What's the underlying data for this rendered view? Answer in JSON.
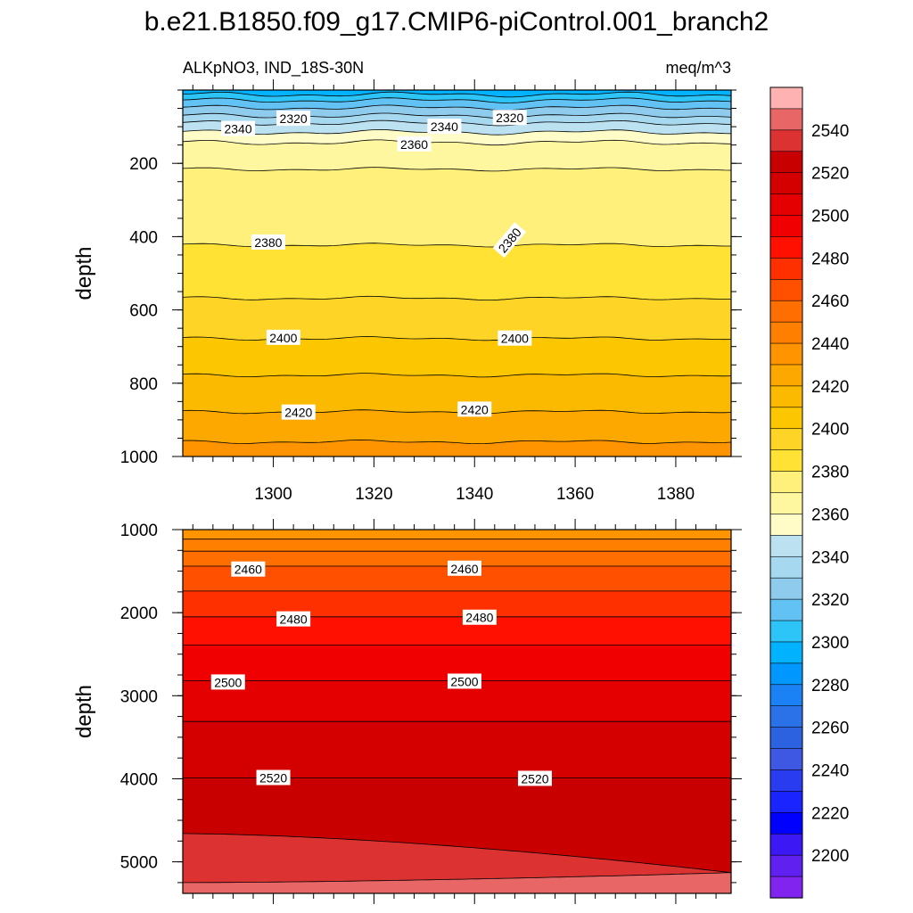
{
  "title": "b.e21.B1850.f09_g17.CMIP6-piControl.001_branch2",
  "chart_data": [
    {
      "type": "contour",
      "left_label": "ALKpNO3, IND_18S-30N",
      "right_label": "meq/m^3",
      "xlabel": "",
      "ylabel": "depth",
      "xlim": [
        1282,
        1391
      ],
      "ylim": [
        0,
        1000
      ],
      "y_inverted": true,
      "x_ticks": [
        "1300",
        "1320",
        "1340",
        "1360",
        "1380"
      ],
      "x_tick_values": [
        1300,
        1320,
        1340,
        1360,
        1380
      ],
      "y_ticks": [
        "200",
        "400",
        "600",
        "800",
        "1000"
      ],
      "y_tick_values": [
        200,
        400,
        600,
        800,
        1000
      ],
      "contours": [
        {
          "level": 2300,
          "depth": 12
        },
        {
          "level": 2310,
          "depth": 28
        },
        {
          "level": 2320,
          "depth": 48
        },
        {
          "level": 2330,
          "depth": 70
        },
        {
          "level": 2340,
          "depth": 90
        },
        {
          "level": 2350,
          "depth": 115
        },
        {
          "level": 2360,
          "depth": 143
        },
        {
          "level": 2370,
          "depth": 216
        },
        {
          "level": 2380,
          "depth": 423
        },
        {
          "level": 2390,
          "depth": 568
        },
        {
          "level": 2400,
          "depth": 678
        },
        {
          "level": 2410,
          "depth": 778
        },
        {
          "level": 2420,
          "depth": 878
        },
        {
          "level": 2430,
          "depth": 960
        }
      ],
      "contour_labels": [
        {
          "text": "2340",
          "x": 1293,
          "depth": 106
        },
        {
          "text": "2320",
          "x": 1304,
          "depth": 78
        },
        {
          "text": "2340",
          "x": 1334,
          "depth": 100
        },
        {
          "text": "2320",
          "x": 1347,
          "depth": 76
        },
        {
          "text": "2360",
          "x": 1328,
          "depth": 148
        },
        {
          "text": "2380",
          "x": 1299,
          "depth": 416
        },
        {
          "text": "2380",
          "x": 1347,
          "depth": 410
        },
        {
          "text": "2400",
          "x": 1302,
          "depth": 676
        },
        {
          "text": "2400",
          "x": 1348,
          "depth": 678
        },
        {
          "text": "2420",
          "x": 1305,
          "depth": 880
        },
        {
          "text": "2420",
          "x": 1340,
          "depth": 872
        }
      ]
    },
    {
      "type": "contour",
      "xlabel": "",
      "ylabel": "depth",
      "xlim": [
        1282,
        1391
      ],
      "ylim": [
        1000,
        5380
      ],
      "y_inverted": true,
      "y_ticks": [
        "1000",
        "2000",
        "3000",
        "4000",
        "5000"
      ],
      "y_tick_values": [
        1000,
        2000,
        3000,
        4000,
        5000
      ],
      "contours": [
        {
          "level": 2440,
          "depth": 1115
        },
        {
          "level": 2450,
          "depth": 1260
        },
        {
          "level": 2460,
          "depth": 1440
        },
        {
          "level": 2470,
          "depth": 1740
        },
        {
          "level": 2480,
          "depth": 2050
        },
        {
          "level": 2490,
          "depth": 2390
        },
        {
          "level": 2500,
          "depth": 2820
        },
        {
          "level": 2510,
          "depth": 3310
        },
        {
          "level": 2520,
          "depth": 3990
        },
        {
          "level": 2530,
          "depth_left": 4660,
          "depth_right": 5130
        },
        {
          "level": 2540,
          "depth_left": 5250,
          "depth_right": 5130
        }
      ],
      "contour_labels": [
        {
          "text": "2460",
          "x": 1295,
          "depth": 1480
        },
        {
          "text": "2460",
          "x": 1338,
          "depth": 1470
        },
        {
          "text": "2480",
          "x": 1304,
          "depth": 2080
        },
        {
          "text": "2480",
          "x": 1341,
          "depth": 2060
        },
        {
          "text": "2500",
          "x": 1291,
          "depth": 2840
        },
        {
          "text": "2500",
          "x": 1338,
          "depth": 2830
        },
        {
          "text": "2520",
          "x": 1300,
          "depth": 3990
        },
        {
          "text": "2520",
          "x": 1352,
          "depth": 4000
        }
      ]
    }
  ],
  "colorbar": {
    "labels": [
      "2540",
      "2520",
      "2500",
      "2480",
      "2460",
      "2440",
      "2420",
      "2400",
      "2380",
      "2360",
      "2340",
      "2320",
      "2300",
      "2280",
      "2260",
      "2240",
      "2220",
      "2200"
    ],
    "label_values": [
      2540,
      2520,
      2500,
      2480,
      2460,
      2440,
      2420,
      2400,
      2380,
      2360,
      2340,
      2320,
      2300,
      2280,
      2260,
      2240,
      2220,
      2200
    ],
    "min": 2190,
    "max": 2560,
    "step": 10,
    "colors_top_to_bottom": [
      "#ffb2b2",
      "#e86666",
      "#dc3232",
      "#c80000",
      "#d40000",
      "#e40000",
      "#f00000",
      "#ff1000",
      "#ff3000",
      "#ff5000",
      "#ff6e00",
      "#ff7f00",
      "#ff9300",
      "#fda800",
      "#fbb900",
      "#fdc700",
      "#fed427",
      "#ffe234",
      "#fff07c",
      "#fff7a0",
      "#fffcc8",
      "#bce2f2",
      "#a6d8f0",
      "#8ecbed",
      "#62c2f3",
      "#2dc4f7",
      "#00b2ff",
      "#0097ff",
      "#1b82f5",
      "#2b72e8",
      "#2c62e0",
      "#3e58e4",
      "#2a3cf0",
      "#1a24ff",
      "#0000ff",
      "#3c18f4",
      "#6020f0",
      "#8224f0"
    ]
  }
}
